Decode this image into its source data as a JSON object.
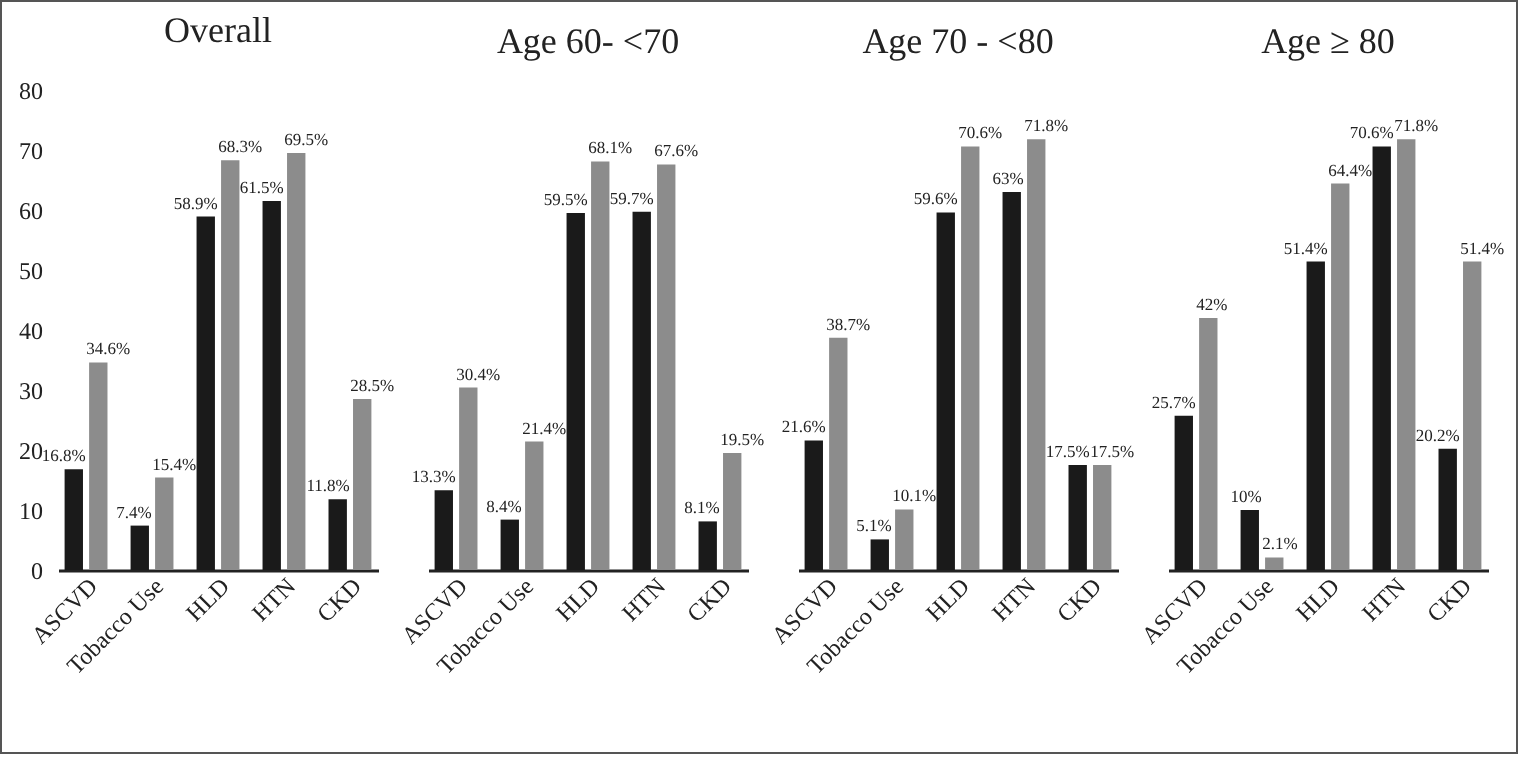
{
  "chart_data": [
    {
      "type": "bar",
      "title": "Overall",
      "categories": [
        "ASCVD",
        "Tobacco Use",
        "HLD",
        "HTN",
        "CKD"
      ],
      "ylim": [
        0,
        80
      ],
      "yticks": [
        0,
        10,
        20,
        30,
        40,
        50,
        60,
        70,
        80
      ],
      "grid": false,
      "legend": false,
      "series": [
        {
          "color": "#1a1a1a",
          "values": [
            16.8,
            7.4,
            58.9,
            61.5,
            11.8
          ],
          "value_labels": [
            "16.8%",
            "7.4%",
            "58.9%",
            "61.5%",
            "11.8%"
          ]
        },
        {
          "color": "#8c8c8c",
          "values": [
            34.6,
            15.4,
            68.3,
            69.5,
            28.5
          ],
          "value_labels": [
            "34.6%",
            "15.4%",
            "68.3%",
            "69.5%",
            "28.5%"
          ]
        }
      ]
    },
    {
      "type": "bar",
      "title": "Age 60- <70",
      "categories": [
        "ASCVD",
        "Tobacco Use",
        "HLD",
        "HTN",
        "CKD"
      ],
      "ylim": [
        0,
        80
      ],
      "yticks": [
        0,
        10,
        20,
        30,
        40,
        50,
        60,
        70,
        80
      ],
      "tick_labels": "x",
      "grid": false,
      "legend": false,
      "series": [
        {
          "color": "#1a1a1a",
          "values": [
            13.3,
            8.4,
            59.5,
            59.7,
            8.1
          ],
          "value_labels": [
            "13.3%",
            "8.4%",
            "59.5%",
            "59.7%",
            "8.1%"
          ]
        },
        {
          "color": "#8c8c8c",
          "values": [
            30.4,
            21.4,
            68.1,
            67.6,
            19.5
          ],
          "value_labels": [
            "30.4%",
            "21.4%",
            "68.1%",
            "67.6%",
            "19.5%"
          ]
        }
      ]
    },
    {
      "type": "bar",
      "title": "Age 70 - <80",
      "categories": [
        "ASCVD",
        "Tobacco Use",
        "HLD",
        "HTN",
        "CKD"
      ],
      "ylim": [
        0,
        80
      ],
      "yticks": [
        0,
        10,
        20,
        30,
        40,
        50,
        60,
        70,
        80
      ],
      "tick_labels": "x",
      "grid": false,
      "legend": false,
      "series": [
        {
          "color": "#1a1a1a",
          "values": [
            21.6,
            5.1,
            59.6,
            63,
            17.5
          ],
          "value_labels": [
            "21.6%",
            "5.1%",
            "59.6%",
            "63%",
            "17.5%"
          ]
        },
        {
          "color": "#8c8c8c",
          "values": [
            38.7,
            10.1,
            70.6,
            71.8,
            17.5
          ],
          "value_labels": [
            "38.7%",
            "10.1%",
            "70.6%",
            "71.8%",
            "17.5%"
          ]
        }
      ]
    },
    {
      "type": "bar",
      "title": "Age ≥ 80",
      "categories": [
        "ASCVD",
        "Tobacco Use",
        "HLD",
        "HTN",
        "CKD"
      ],
      "ylim": [
        0,
        80
      ],
      "yticks": [
        0,
        10,
        20,
        30,
        40,
        50,
        60,
        70,
        80
      ],
      "tick_labels": "x",
      "grid": false,
      "legend": false,
      "series": [
        {
          "color": "#1a1a1a",
          "values": [
            25.7,
            10,
            51.4,
            70.6,
            20.2
          ],
          "value_labels": [
            "25.7%",
            "10%",
            "51.4%",
            "70.6%",
            "20.2%"
          ]
        },
        {
          "color": "#8c8c8c",
          "values": [
            42,
            2.1,
            64.4,
            71.8,
            51.4
          ],
          "value_labels": [
            "42%",
            "2.1%",
            "64.4%",
            "71.8%",
            "51.4%"
          ]
        }
      ]
    }
  ]
}
